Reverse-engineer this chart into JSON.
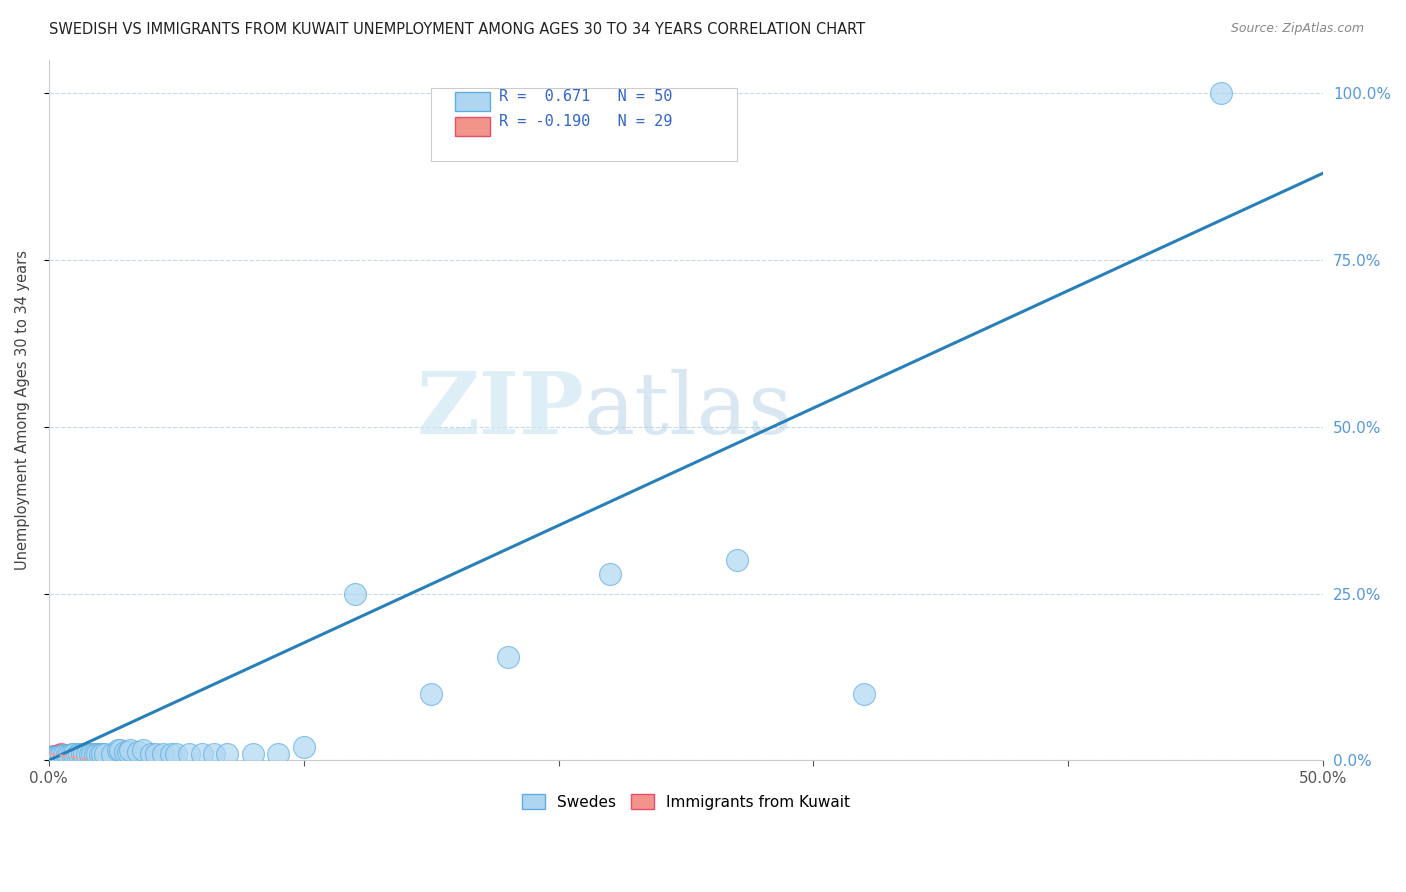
{
  "title": "SWEDISH VS IMMIGRANTS FROM KUWAIT UNEMPLOYMENT AMONG AGES 30 TO 34 YEARS CORRELATION CHART",
  "source": "Source: ZipAtlas.com",
  "ylabel": "Unemployment Among Ages 30 to 34 years",
  "x_min": 0.0,
  "x_max": 0.5,
  "y_min": 0.0,
  "y_max": 1.05,
  "x_ticks": [
    0.0,
    0.1,
    0.2,
    0.3,
    0.4,
    0.5
  ],
  "x_tick_labels_show": [
    "0.0%",
    "",
    "",
    "",
    "",
    "50.0%"
  ],
  "y_ticks": [
    0.0,
    0.25,
    0.5,
    0.75,
    1.0
  ],
  "y_tick_labels_right": [
    "0.0%",
    "25.0%",
    "50.0%",
    "75.0%",
    "100.0%"
  ],
  "legend_R1": "0.671",
  "legend_N1": "50",
  "legend_R2": "-0.190",
  "legend_N2": "29",
  "swede_color": "#aed6f1",
  "swede_edge": "#5dade2",
  "kuwait_color": "#f1948a",
  "kuwait_edge": "#e74c6c",
  "trendline1_color": "#2980b9",
  "trendline2_color": "#e8a0a0",
  "watermark_zip": "ZIP",
  "watermark_atlas": "atlas",
  "swedes_x": [
    0.0,
    0.001,
    0.002,
    0.003,
    0.004,
    0.005,
    0.006,
    0.007,
    0.008,
    0.009,
    0.01,
    0.011,
    0.012,
    0.013,
    0.014,
    0.015,
    0.016,
    0.017,
    0.018,
    0.019,
    0.02,
    0.021,
    0.022,
    0.025,
    0.027,
    0.028,
    0.03,
    0.031,
    0.032,
    0.035,
    0.037,
    0.04,
    0.042,
    0.045,
    0.048,
    0.05,
    0.055,
    0.06,
    0.065,
    0.07,
    0.08,
    0.09,
    0.1,
    0.12,
    0.15,
    0.18,
    0.22,
    0.27,
    0.32,
    0.46
  ],
  "swedes_y": [
    0.0,
    0.005,
    0.005,
    0.005,
    0.007,
    0.007,
    0.008,
    0.008,
    0.008,
    0.01,
    0.01,
    0.008,
    0.01,
    0.01,
    0.01,
    0.01,
    0.01,
    0.01,
    0.01,
    0.01,
    0.01,
    0.01,
    0.01,
    0.01,
    0.015,
    0.015,
    0.012,
    0.012,
    0.015,
    0.013,
    0.015,
    0.01,
    0.01,
    0.01,
    0.01,
    0.01,
    0.01,
    0.01,
    0.01,
    0.01,
    0.01,
    0.01,
    0.02,
    0.25,
    0.1,
    0.155,
    0.28,
    0.3,
    0.1,
    1.0
  ],
  "kuwait_x": [
    0.0,
    0.0,
    0.001,
    0.001,
    0.002,
    0.002,
    0.002,
    0.003,
    0.003,
    0.003,
    0.004,
    0.004,
    0.004,
    0.004,
    0.005,
    0.005,
    0.005,
    0.005,
    0.005,
    0.006,
    0.006,
    0.006,
    0.007,
    0.007,
    0.008,
    0.008,
    0.009,
    0.01,
    0.01
  ],
  "kuwait_y": [
    0.0,
    0.005,
    0.0,
    0.005,
    0.003,
    0.005,
    0.007,
    0.003,
    0.005,
    0.007,
    0.002,
    0.004,
    0.006,
    0.008,
    0.002,
    0.004,
    0.006,
    0.008,
    0.01,
    0.003,
    0.005,
    0.007,
    0.004,
    0.006,
    0.004,
    0.006,
    0.005,
    0.004,
    0.006
  ],
  "trendline1_x": [
    0.0,
    0.5
  ],
  "trendline1_y": [
    0.0,
    0.88
  ],
  "trendline2_x": [
    0.0,
    0.015
  ],
  "trendline2_y": [
    0.01,
    0.002
  ]
}
